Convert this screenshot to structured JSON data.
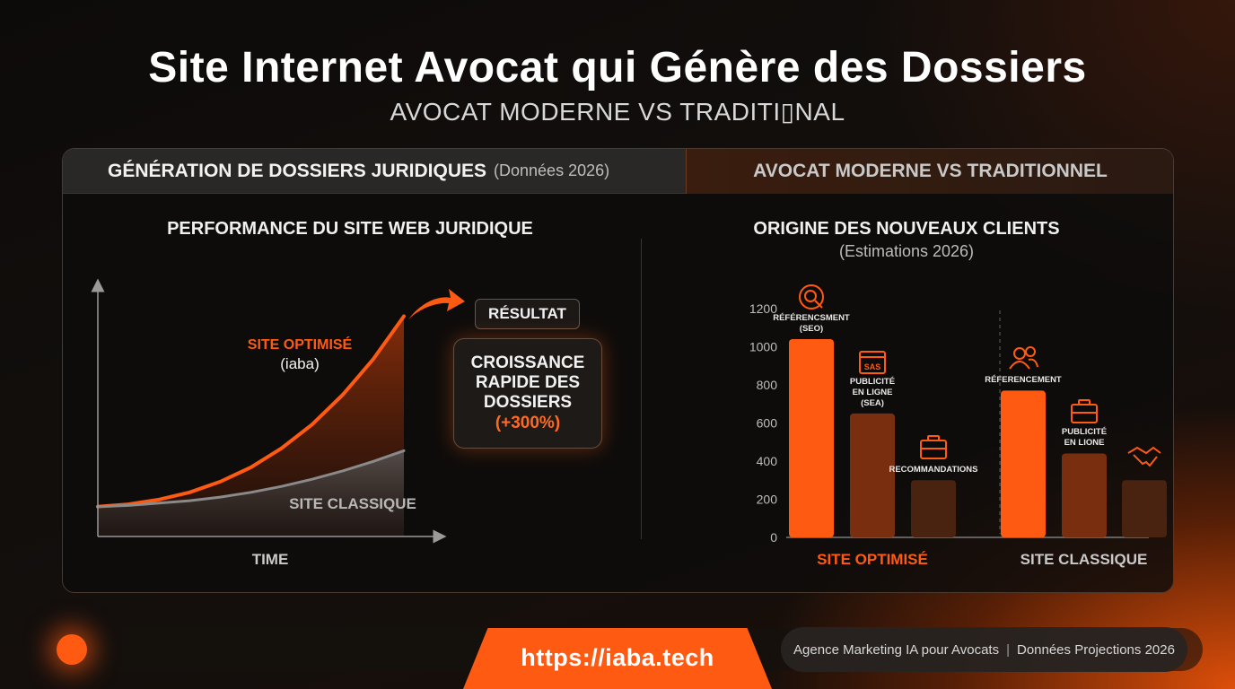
{
  "header": {
    "title": "Site Internet Avocat qui Génère des Dossiers",
    "subtitle": "AVOCAT MODERNE VS TRADITI▯NAL"
  },
  "panel": {
    "tab_left": "GÉNÉRATION DE DOSSIERS JURIDIQUES",
    "tab_left_note": "(Données 2026)",
    "tab_right": "AVOCAT MODERNE VS TRADITIONNEL"
  },
  "growth": {
    "title": "PERFORMANCE DU SITE WEB JURIDIQUE",
    "optimized_label": "SITE OPTIMISÉ",
    "optimized_sub": "(iaba)",
    "classic_label": "SITE CLASSIQUE",
    "xlabel": "TIME",
    "result_label": "RÉSULTAT",
    "result_line1": "CROISSANCE",
    "result_line2": "RAPIDE DES",
    "result_line3": "DOSSIERS",
    "result_value": "(+300%)",
    "colors": {
      "optimized": "#ff5a12",
      "classic": "#8a8a8a"
    }
  },
  "chart_data": [
    {
      "type": "area",
      "title": "PERFORMANCE DU SITE WEB JURIDIQUE",
      "xlabel": "TIME",
      "ylabel": "",
      "x": [
        0,
        1,
        2,
        3,
        4,
        5,
        6,
        7,
        8,
        9,
        10
      ],
      "series": [
        {
          "name": "SITE OPTIMISÉ",
          "values": [
            10,
            12,
            16,
            22,
            31,
            43,
            59,
            79,
            104,
            134,
            170
          ]
        },
        {
          "name": "SITE CLASSIQUE",
          "values": [
            10,
            11,
            13,
            15,
            18,
            22,
            27,
            33,
            40,
            48,
            57
          ]
        }
      ],
      "ylim": [
        0,
        190
      ]
    },
    {
      "type": "bar",
      "title": "ORIGINE DES NOUVEAUX CLIENTS",
      "subtitle": "(Estimations 2026)",
      "ylim": [
        0,
        1200
      ],
      "yticks": [
        0,
        200,
        400,
        600,
        800,
        1000,
        1200
      ],
      "groups": [
        {
          "name": "SITE OPTIMISÉ",
          "bars": [
            {
              "label": "RÉFÉRENCSMENT (SEO)",
              "value": 1040,
              "icon": "search-icon"
            },
            {
              "label": "PUBLICITÉ EN LIGNE (SEA)",
              "value": 650,
              "icon": "ad-screen-icon",
              "icon_text": "SAS"
            },
            {
              "label": "RECOMMANDATIONS",
              "value": 300,
              "icon": "briefcase-icon"
            }
          ]
        },
        {
          "name": "SITE CLASSIQUE",
          "bars": [
            {
              "label": "RÉFERENCEMENT",
              "value": 770,
              "icon": "users-icon"
            },
            {
              "label": "PUBLICITÉ EN LIONE",
              "value": 440,
              "icon": "briefcase-icon"
            },
            {
              "label": "",
              "value": 300,
              "icon": "handshake-icon"
            }
          ]
        }
      ],
      "colors": {
        "primary": "#ff5a12",
        "secondary": "#7a2e10",
        "tertiary": "#4a2210",
        "optimized_label": "#ff5a12",
        "classic_label": "#c9c9c9"
      }
    }
  ],
  "clients": {
    "title": "ORIGINE DES NOUVEAUX CLIENTS",
    "note": "(Estimations 2026)"
  },
  "footer": {
    "url": "https://iaba.tech",
    "tag_left": "Agence Marketing IA pour Avocats",
    "tag_sep": "|",
    "tag_right": "Données Projections 2026"
  }
}
